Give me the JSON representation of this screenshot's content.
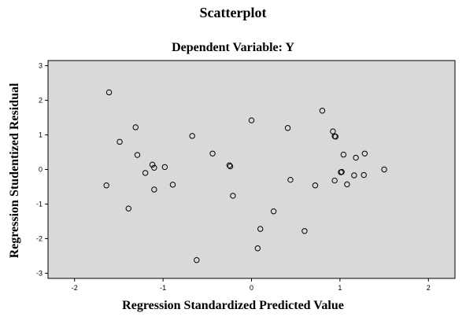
{
  "chart_data": {
    "type": "scatter",
    "title": "Scatterplot",
    "subtitle": "Dependent Variable: Y",
    "xlabel": "Regression Standardized Predicted Value",
    "ylabel": "Regression Studentized Residual",
    "xlim": [
      -2.3,
      2.3
    ],
    "ylim": [
      -3.15,
      3.15
    ],
    "xticks": [
      -2,
      -1,
      0,
      1,
      2
    ],
    "yticks": [
      -3,
      -2,
      -1,
      0,
      1,
      2,
      3
    ],
    "xtick_labels": [
      "-2",
      "-1",
      "0",
      "1",
      "2"
    ],
    "ytick_labels": [
      "-3",
      "-2",
      "-1",
      "0",
      "1",
      "2",
      "3"
    ],
    "plot_background": "#d9d9d9",
    "marker_color": "#000000",
    "points": [
      {
        "x": -1.61,
        "y": 2.23
      },
      {
        "x": -1.64,
        "y": -0.46
      },
      {
        "x": -1.49,
        "y": 0.8
      },
      {
        "x": -1.39,
        "y": -1.13
      },
      {
        "x": -1.31,
        "y": 1.22
      },
      {
        "x": -1.29,
        "y": 0.42
      },
      {
        "x": -1.2,
        "y": -0.1
      },
      {
        "x": -1.12,
        "y": 0.14
      },
      {
        "x": -1.1,
        "y": 0.05
      },
      {
        "x": -1.1,
        "y": -0.58
      },
      {
        "x": -0.98,
        "y": 0.07
      },
      {
        "x": -0.89,
        "y": -0.44
      },
      {
        "x": -0.67,
        "y": 0.97
      },
      {
        "x": -0.62,
        "y": -2.62
      },
      {
        "x": -0.44,
        "y": 0.46
      },
      {
        "x": -0.25,
        "y": 0.12
      },
      {
        "x": -0.24,
        "y": 0.09
      },
      {
        "x": -0.21,
        "y": -0.76
      },
      {
        "x": 0.0,
        "y": 1.42
      },
      {
        "x": 0.07,
        "y": -2.28
      },
      {
        "x": 0.1,
        "y": -1.72
      },
      {
        "x": 0.25,
        "y": -1.21
      },
      {
        "x": 0.41,
        "y": 1.2
      },
      {
        "x": 0.44,
        "y": -0.3
      },
      {
        "x": 0.6,
        "y": -1.78
      },
      {
        "x": 0.72,
        "y": -0.46
      },
      {
        "x": 0.8,
        "y": 1.7
      },
      {
        "x": 0.92,
        "y": 1.1
      },
      {
        "x": 0.94,
        "y": 0.96
      },
      {
        "x": 0.95,
        "y": 0.95
      },
      {
        "x": 0.94,
        "y": -0.32
      },
      {
        "x": 1.01,
        "y": -0.08
      },
      {
        "x": 1.02,
        "y": -0.07
      },
      {
        "x": 1.04,
        "y": 0.43
      },
      {
        "x": 1.08,
        "y": -0.43
      },
      {
        "x": 1.16,
        "y": -0.17
      },
      {
        "x": 1.18,
        "y": 0.34
      },
      {
        "x": 1.27,
        "y": -0.16
      },
      {
        "x": 1.28,
        "y": 0.46
      },
      {
        "x": 1.5,
        "y": 0.0
      }
    ]
  }
}
